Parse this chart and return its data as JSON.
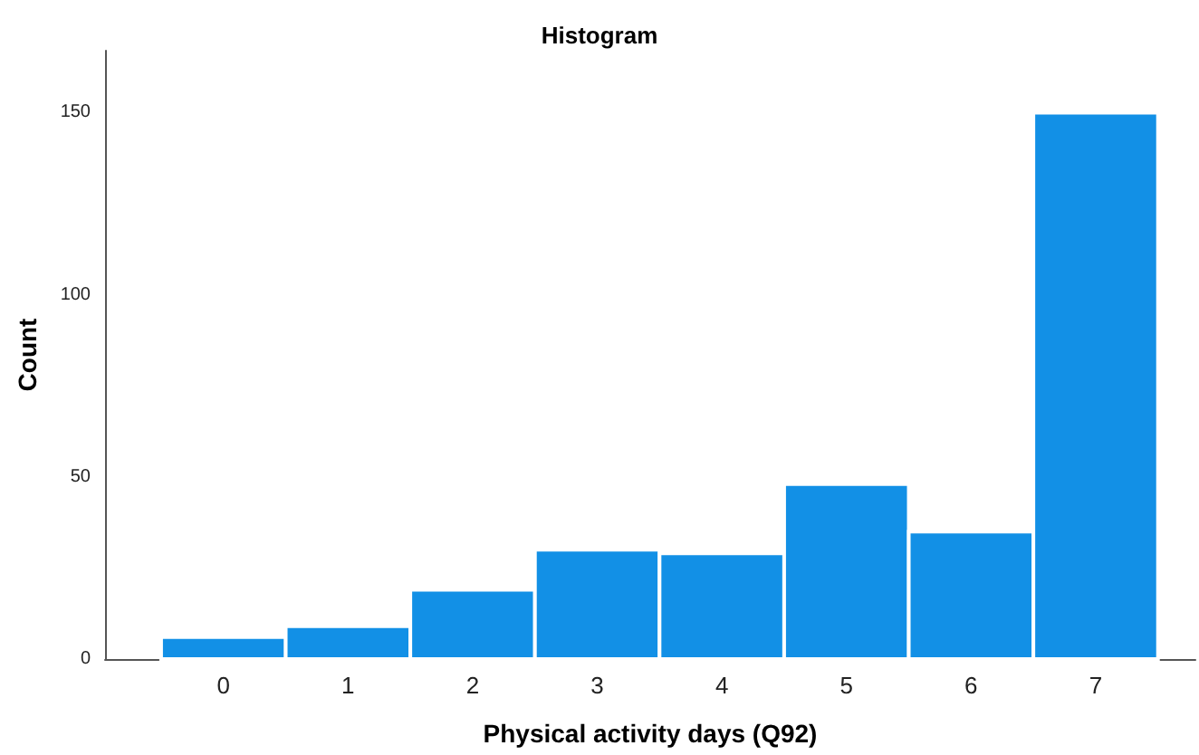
{
  "chart_data": {
    "type": "histogram",
    "title": "Histogram",
    "xlabel": "Physical activity days (Q92)",
    "ylabel": "Count",
    "bins": [
      -0.5,
      0.5,
      1.5,
      2.5,
      3.5,
      4.5,
      5.5,
      6.5,
      7.5
    ],
    "values": [
      6,
      9,
      19,
      30,
      29,
      48,
      35,
      150
    ],
    "color": "#1290e6",
    "xlim": [
      -0.95,
      7.8
    ],
    "xticks": [
      0,
      1,
      2,
      3,
      4,
      5,
      6,
      7
    ],
    "ylim": [
      0,
      167
    ],
    "yticks": [
      0,
      50,
      100,
      150
    ]
  }
}
